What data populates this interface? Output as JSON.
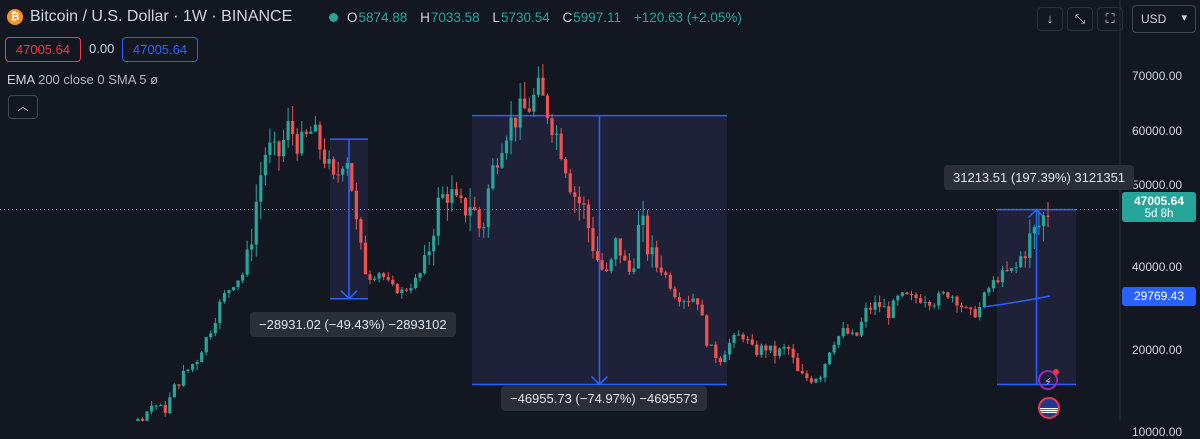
{
  "header": {
    "symbol_title": "Bitcoin / U.S. Dollar · 1W · BINANCE",
    "ohlc": [
      {
        "key": "O",
        "value": "5874.88"
      },
      {
        "key": "H",
        "value": "7033.58"
      },
      {
        "key": "L",
        "value": "5730.54"
      },
      {
        "key": "C",
        "value": "5997.11"
      },
      {
        "key": "",
        "value": "+120.63 (+2.05%)"
      }
    ],
    "currency": "USD",
    "icons": [
      "arrow-down-icon",
      "expand-icon",
      "fullscreen-icon"
    ]
  },
  "trade": {
    "sell_price": "47005.64",
    "spread": "0.00",
    "buy_price": "47005.64"
  },
  "indicator": {
    "name": "EMA",
    "params": "200 close 0 SMA 5",
    "visibility_glyph": "ø"
  },
  "colors": {
    "up": "#26a69a",
    "down": "#ef5350",
    "ema": "#2962ff",
    "measure_line": "#2962ff",
    "background": "#131722"
  },
  "price_scale": {
    "labels": [
      "70000.00",
      "60000.00",
      "50000.00",
      "40000.00",
      "20000.00",
      "10000.00"
    ],
    "current_price": "47005.64",
    "countdown": "5d 8h",
    "ema_price": "29769.43"
  },
  "measurements": [
    {
      "label": "−28931.02 (−49.43%) −2893102",
      "from_price": 58500,
      "to_price": 29500,
      "direction": "down"
    },
    {
      "label": "−46955.73 (−74.97%) −4695573",
      "from_price": 62800,
      "to_price": 15800,
      "direction": "down"
    },
    {
      "label": "31213.51 (197.39%) 3121351",
      "from_price": 15800,
      "to_price": 47000,
      "direction": "up"
    }
  ],
  "chart_data": {
    "type": "candlestick",
    "title": "Bitcoin / U.S. Dollar · 1W · BINANCE",
    "ylim": [
      8000,
      78000
    ],
    "price_ticks": [
      10000,
      20000,
      40000,
      50000,
      60000,
      70000
    ],
    "series": [
      {
        "name": "BTCUSD",
        "anchors": [
          [
            7000,
            0
          ],
          [
            7500,
            5
          ],
          [
            8500,
            6
          ],
          [
            7500,
            7
          ],
          [
            9200,
            9
          ],
          [
            10500,
            11
          ],
          [
            11800,
            12
          ],
          [
            13500,
            13
          ],
          [
            12500,
            14
          ],
          [
            15800,
            15
          ],
          [
            17500,
            16
          ],
          [
            19200,
            17
          ],
          [
            23500,
            18
          ],
          [
            29000,
            19
          ],
          [
            34000,
            20
          ],
          [
            38000,
            21
          ],
          [
            47000,
            22
          ],
          [
            57000,
            23
          ],
          [
            55000,
            24
          ],
          [
            61000,
            25
          ],
          [
            57000,
            26
          ],
          [
            60000,
            27
          ],
          [
            56000,
            28
          ],
          [
            50000,
            29
          ],
          [
            57000,
            30
          ],
          [
            44000,
            31
          ],
          [
            36500,
            32
          ],
          [
            38500,
            33
          ],
          [
            33000,
            34
          ],
          [
            31500,
            35
          ],
          [
            34500,
            36
          ],
          [
            40000,
            37
          ],
          [
            47000,
            38
          ],
          [
            49500,
            39
          ],
          [
            46500,
            40
          ],
          [
            48000,
            41
          ],
          [
            44000,
            42
          ],
          [
            53000,
            43
          ],
          [
            60000,
            44
          ],
          [
            62500,
            45
          ],
          [
            64000,
            46
          ],
          [
            67000,
            47
          ],
          [
            63000,
            48
          ],
          [
            57000,
            49
          ],
          [
            49500,
            50
          ],
          [
            47000,
            51
          ],
          [
            42000,
            52
          ],
          [
            37500,
            53
          ],
          [
            43500,
            54
          ],
          [
            38000,
            55
          ],
          [
            45500,
            56
          ],
          [
            41000,
            57
          ],
          [
            39000,
            58
          ],
          [
            31000,
            59
          ],
          [
            29500,
            60
          ],
          [
            30000,
            61
          ],
          [
            20500,
            62
          ],
          [
            19000,
            63
          ],
          [
            21500,
            64
          ],
          [
            23000,
            65
          ],
          [
            19800,
            66
          ],
          [
            20500,
            67
          ],
          [
            19500,
            68
          ],
          [
            20500,
            69
          ],
          [
            16800,
            70
          ],
          [
            16500,
            71
          ],
          [
            17200,
            72
          ],
          [
            21500,
            73
          ],
          [
            23500,
            74
          ],
          [
            22000,
            75
          ],
          [
            27500,
            76
          ],
          [
            28500,
            77
          ],
          [
            26800,
            78
          ],
          [
            30200,
            79
          ],
          [
            29500,
            80
          ],
          [
            30000,
            81
          ],
          [
            29200,
            82
          ],
          [
            31000,
            83
          ],
          [
            29500,
            84
          ],
          [
            26200,
            85
          ],
          [
            27800,
            86
          ],
          [
            34000,
            87
          ],
          [
            37500,
            88
          ],
          [
            39000,
            89
          ],
          [
            42500,
            90
          ],
          [
            44500,
            91
          ],
          [
            47000,
            92
          ]
        ]
      }
    ],
    "ema200": {
      "name": "EMA 200",
      "start": 28000,
      "end": 30000
    }
  }
}
